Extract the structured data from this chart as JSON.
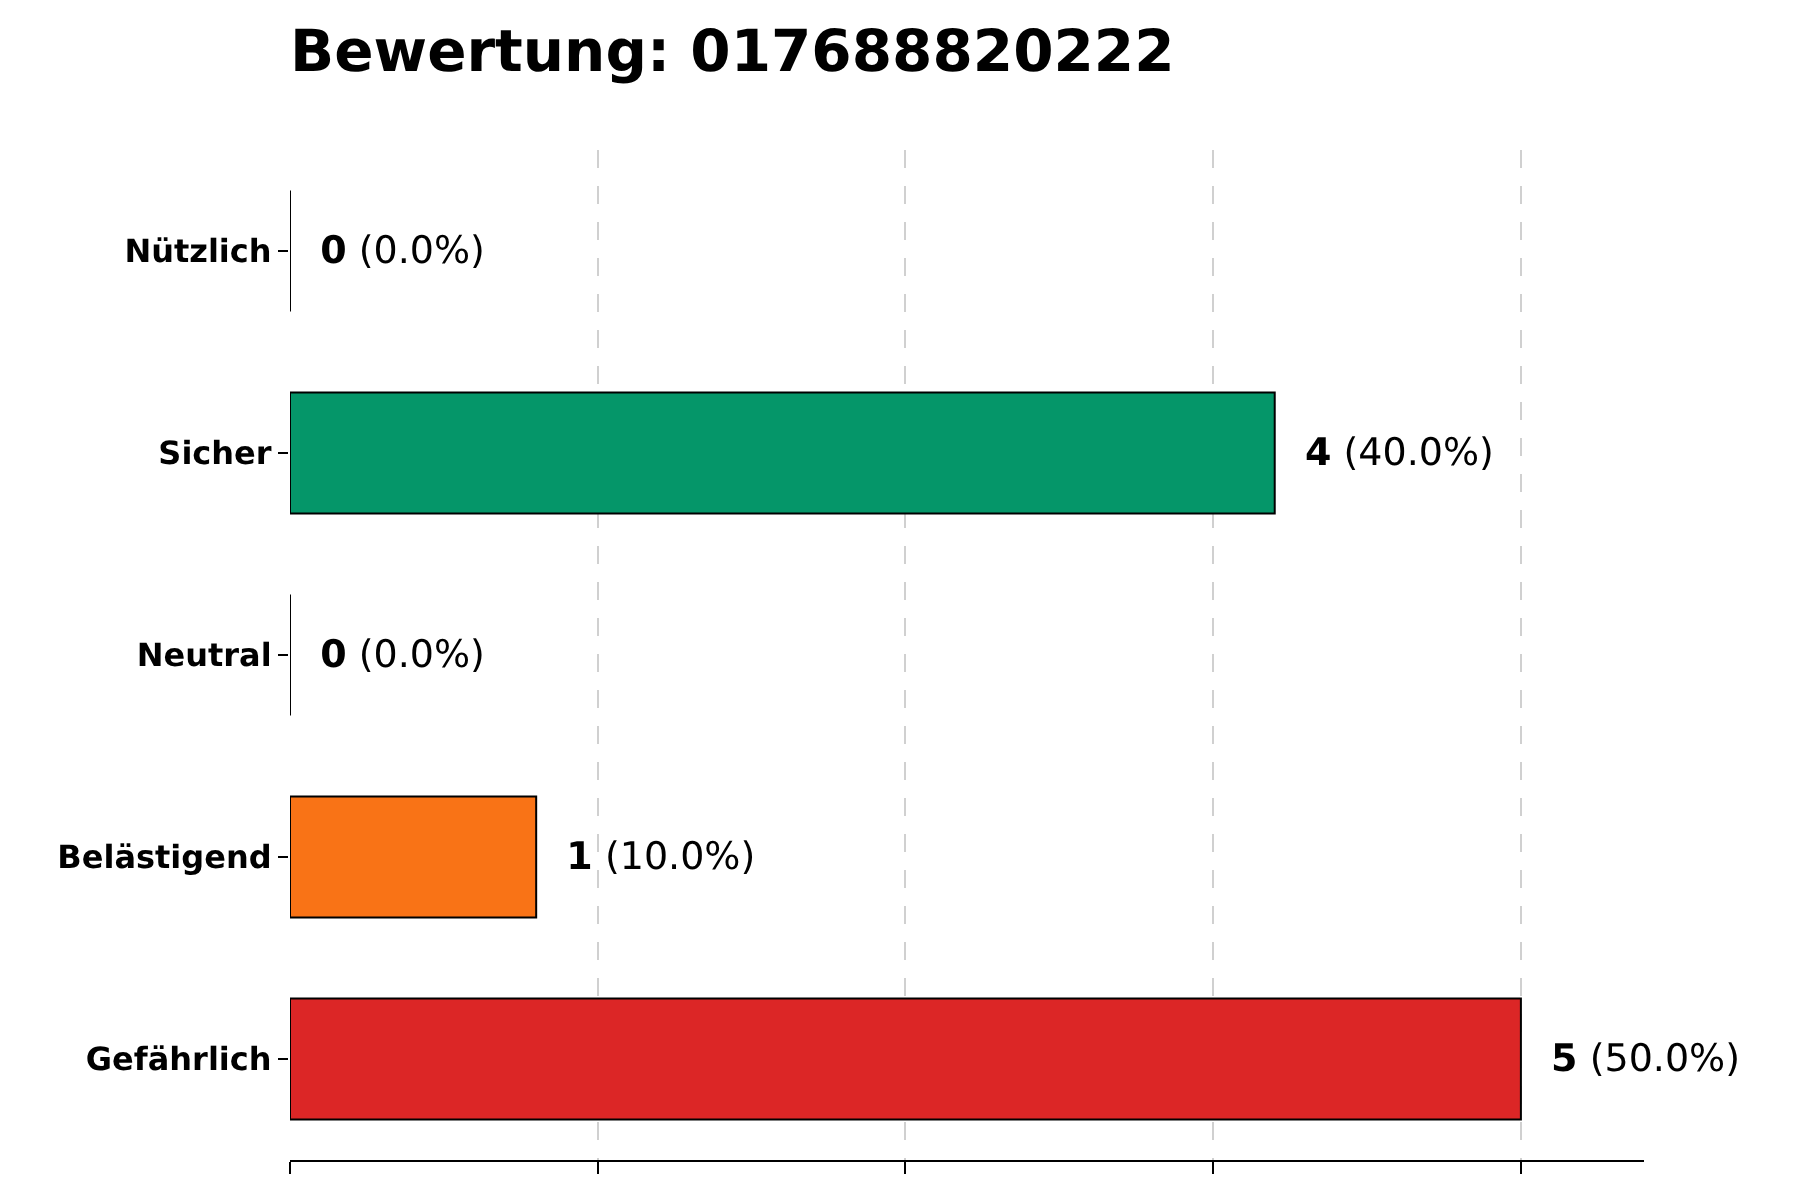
{
  "chart_data": {
    "type": "bar",
    "orientation": "horizontal",
    "title": "Bewertung: 017688820222",
    "categories": [
      "Nützlich",
      "Sicher",
      "Neutral",
      "Belästigend",
      "Gefährlich"
    ],
    "values": [
      0,
      4,
      0,
      1,
      5
    ],
    "colors": [
      "#000000",
      "#059669",
      "#000000",
      "#f97316",
      "#dc2626"
    ],
    "value_labels": [
      "0 (0.0%)",
      "4 (40.0%)",
      "0 (0.0%)",
      "1 (10.0%)",
      "5 (50.0%)"
    ],
    "xlim": [
      0,
      5.5
    ],
    "xticks": [
      {
        "value": 0,
        "label": null
      },
      {
        "value": 1.25,
        "label": null
      },
      {
        "value": 2.5,
        "label": null
      },
      {
        "value": 3.75,
        "label": null
      },
      {
        "value": 5,
        "label": null
      }
    ],
    "grid": "x",
    "legend": false,
    "tick_labels": "y"
  }
}
